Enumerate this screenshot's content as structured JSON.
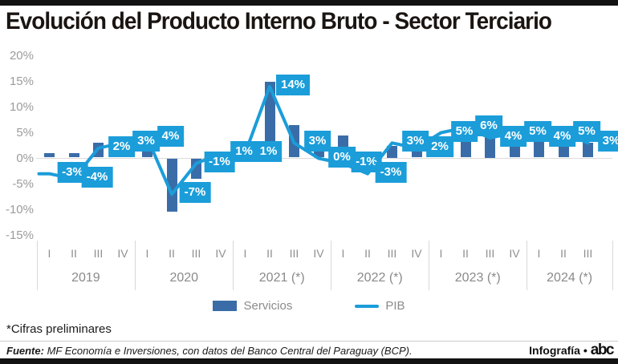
{
  "header": {
    "title": "Evolución del Producto Interno Bruto - Sector Terciario"
  },
  "chart_data": {
    "type": "bar+line",
    "title": "Evolución del Producto Interno Bruto - Sector Terciario",
    "y_axis": {
      "ticks": [
        "20%",
        "15%",
        "10%",
        "5%",
        "0%",
        "-5%",
        "-10%",
        "-15%"
      ],
      "tick_values": [
        20,
        15,
        10,
        5,
        0,
        -5,
        -10,
        -15
      ],
      "ylim": [
        -15,
        20
      ],
      "grid": "zero-line-only"
    },
    "x_axis": {
      "year_groups": [
        {
          "label": "2019",
          "quarters": [
            "I",
            "II",
            "III",
            "IV"
          ]
        },
        {
          "label": "2020",
          "quarters": [
            "I",
            "II",
            "III",
            "IV"
          ]
        },
        {
          "label": "2021 (*)",
          "quarters": [
            "I",
            "II",
            "III",
            "IV"
          ]
        },
        {
          "label": "2022 (*)",
          "quarters": [
            "I",
            "II",
            "III",
            "IV"
          ]
        },
        {
          "label": "2023 (*)",
          "quarters": [
            "I",
            "II",
            "III",
            "IV"
          ]
        },
        {
          "label": "2024 (*)",
          "quarters": [
            "I",
            "II",
            "III"
          ]
        }
      ]
    },
    "series": [
      {
        "name": "Servicios",
        "type": "bar",
        "color": "#3a6da8",
        "values": [
          1,
          1,
          3,
          3,
          2,
          -10.5,
          -4,
          -1,
          1,
          15,
          6.5,
          3,
          4.5,
          0.5,
          2.5,
          2,
          3,
          4.5,
          5,
          3.5,
          4,
          3.5,
          3
        ]
      },
      {
        "name": "PIB",
        "type": "line",
        "color": "#1b9dd9",
        "values": [
          -3,
          -4,
          2,
          3,
          4,
          -7,
          -1,
          1,
          1,
          14,
          3,
          0,
          -1,
          -3,
          3,
          2,
          5,
          6,
          4,
          5,
          4,
          5,
          3
        ],
        "point_labels": [
          "-3%",
          "-4%",
          "2%",
          "3%",
          "4%",
          "-7%",
          "-1%",
          "1%",
          "1%",
          "14%",
          "3%",
          "0%",
          "-1%",
          "-3%",
          "3%",
          "2%",
          "5%",
          "6%",
          "4%",
          "5%",
          "4%",
          "5%",
          "3%"
        ]
      }
    ],
    "legend": {
      "position": "bottom",
      "items": [
        "Servicios",
        "PIB"
      ]
    }
  },
  "footnote": "*Cifras preliminares",
  "source": {
    "label": "Fuente:",
    "text": "MF Economía e Inversiones, con datos del Banco Central del Paraguay (BCP).",
    "credit": "Infografía •",
    "brand": "abc"
  }
}
